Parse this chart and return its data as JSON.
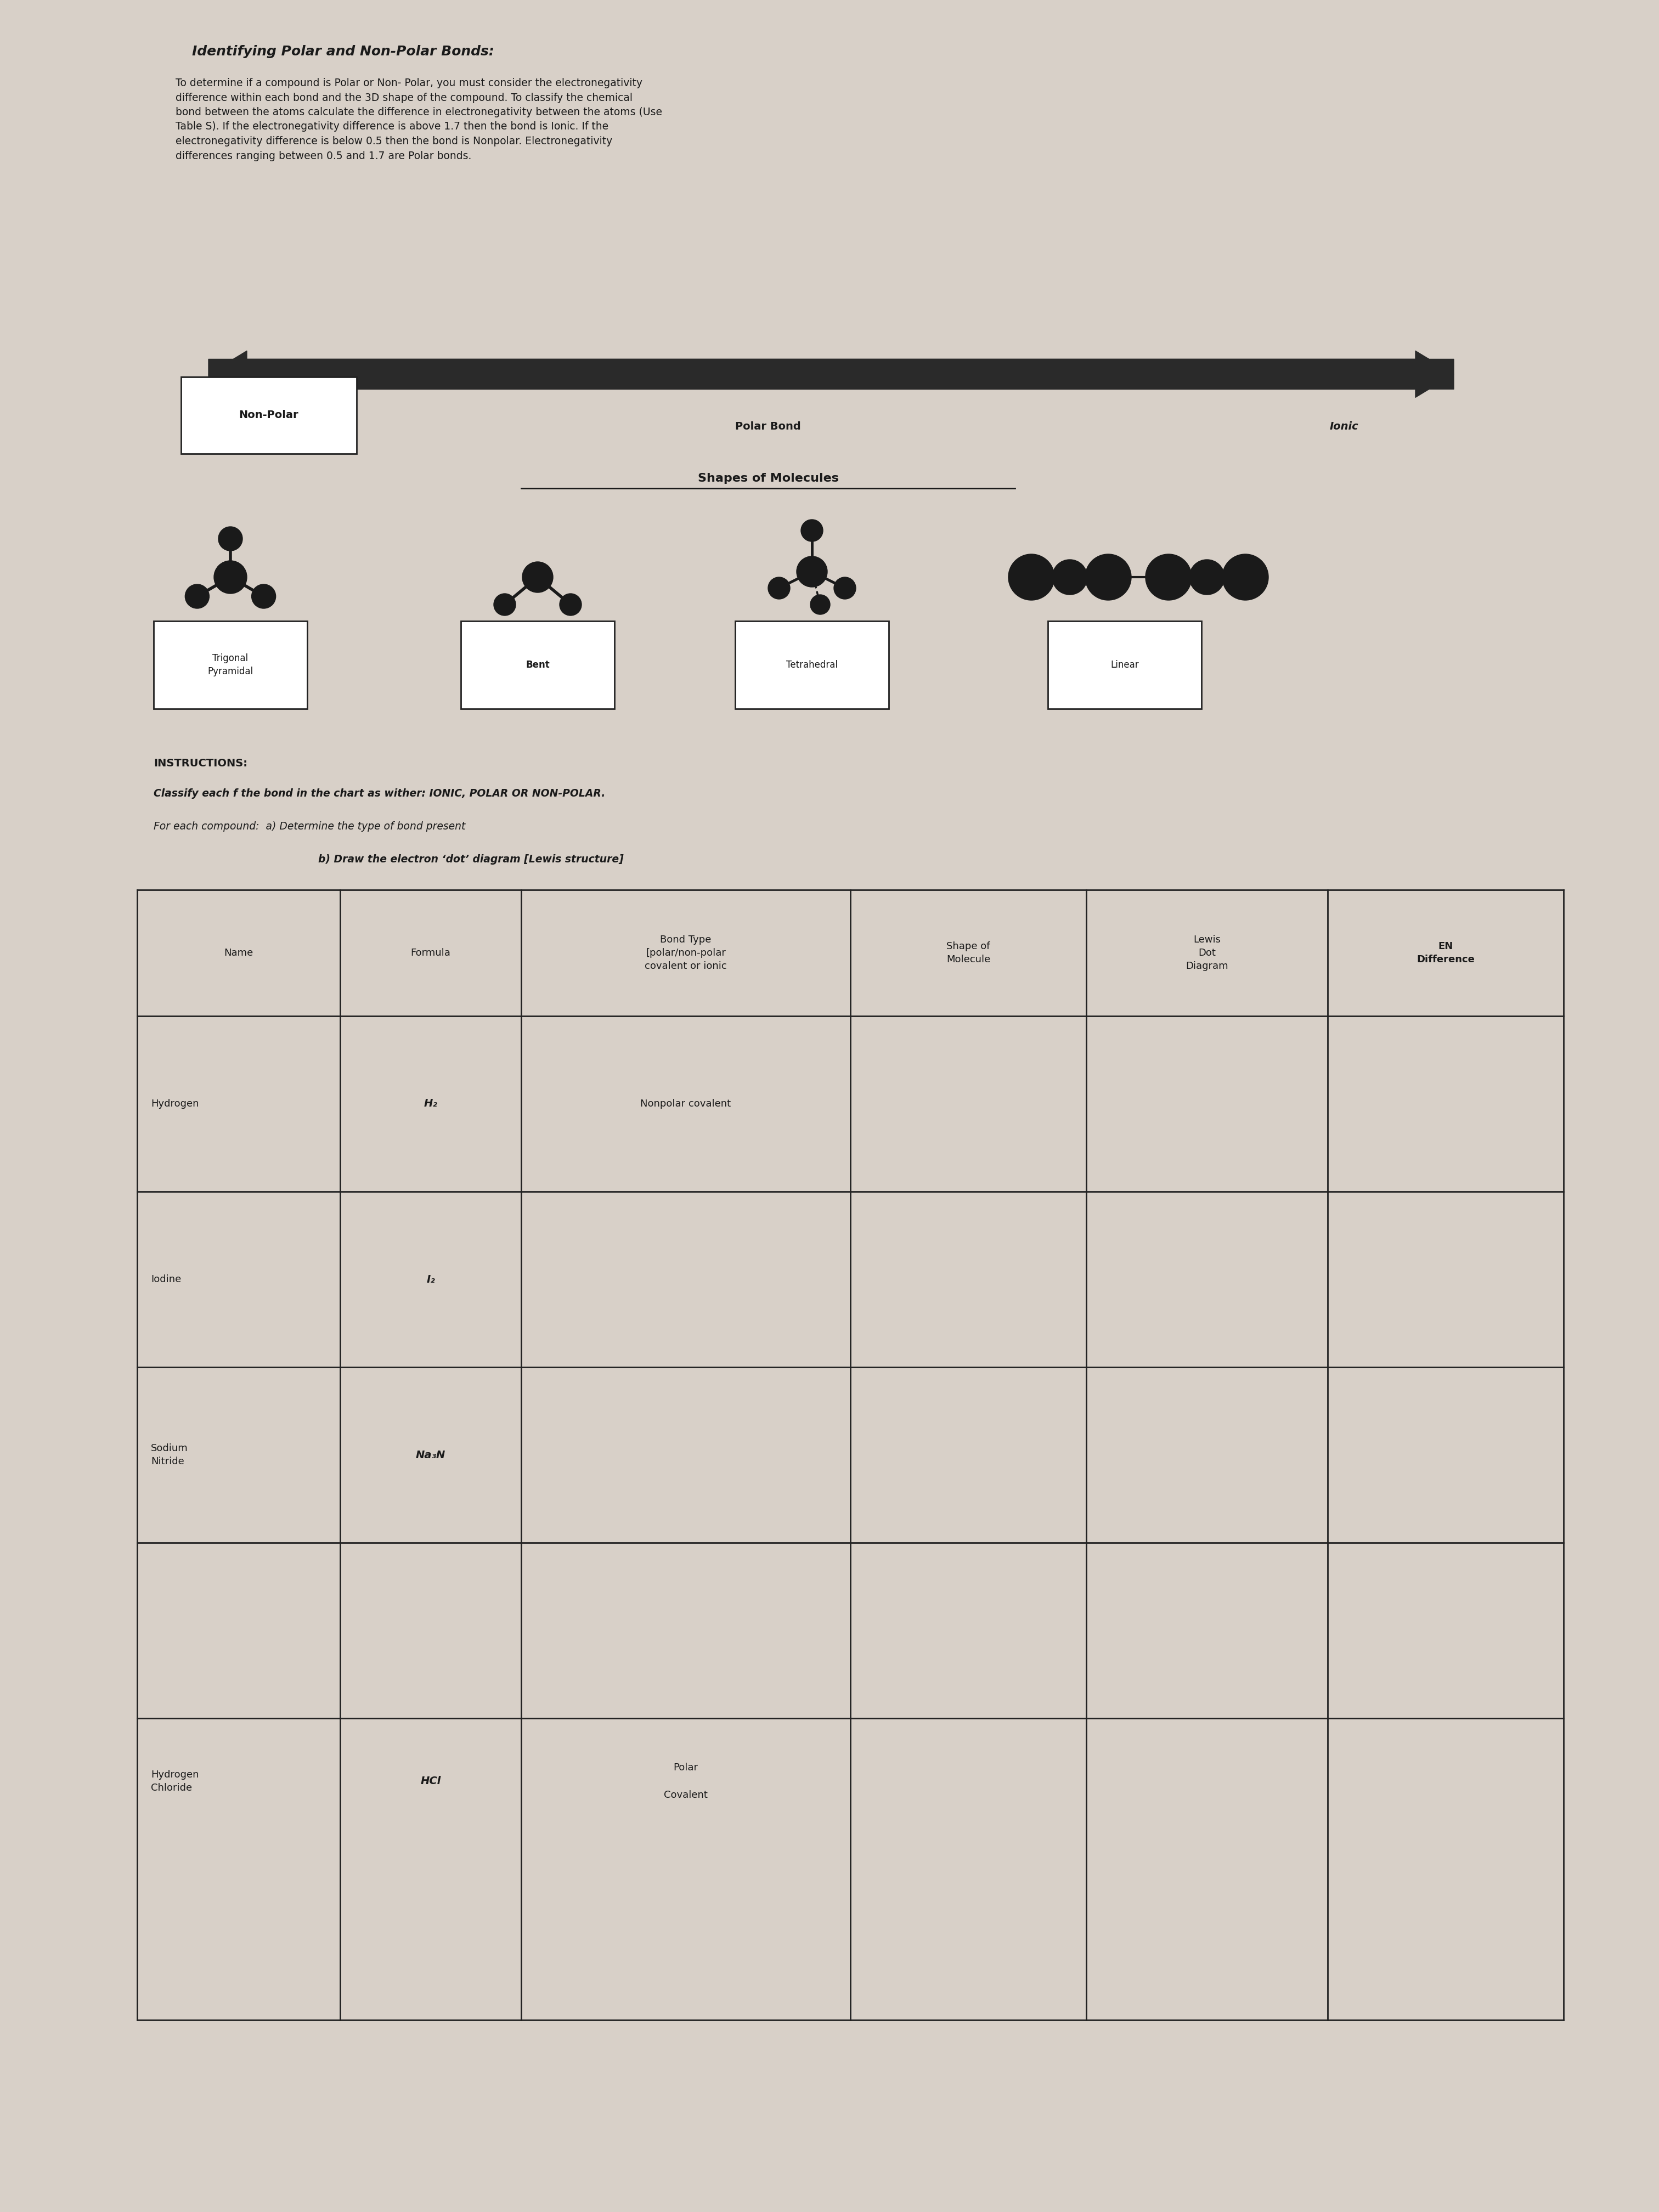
{
  "bg_color": "#d8d0c8",
  "title": "Identifying Polar and Non-Polar Bonds:",
  "intro_text": "To determine if a compound is Polar or Non- Polar, you must consider the electronegativity\ndifference within each bond and the 3D shape of the compound. To classify the chemical\nbond between the atoms calculate the difference in electronegativity between the atoms (Use\nTable S). If the electronegativity difference is above 1.7 then the bond is Ionic. If the\nelectronegativity difference is below 0.5 then the bond is Nonpolar. Electronegativity\ndifferences ranging between 0.5 and 1.7 are Polar bonds.",
  "arrow_label_left": "Non-Polar",
  "arrow_label_center": "Polar Bond",
  "arrow_label_right": "Ionic",
  "shapes_title": "Shapes of Molecules",
  "shape_labels": [
    "Trigonal\nPyramidal",
    "Bent",
    "Tetrahedral",
    "Linear"
  ],
  "instructions_header": "INSTRUCTIONS:",
  "instructions_line1": "Classify each f the bond in the chart as wither: IONIC, POLAR OR NON-POLAR.",
  "instructions_line2": "For each compound:  a) Determine the type of bond present",
  "instructions_line3": "b) Draw the electron ‘dot’ diagram [Lewis structure]",
  "table_headers": [
    "Name",
    "Formula",
    "Bond Type\n[polar/non-polar\ncovalent or ionic",
    "Shape of\nMolecule",
    "Lewis\nDot\nDiagram",
    "EN\nDifference"
  ],
  "table_rows": [
    [
      "Hydrogen",
      "H₂",
      "Nonpolar covalent",
      "",
      "",
      ""
    ],
    [
      "Iodine",
      "I₂",
      "",
      "",
      "",
      ""
    ],
    [
      "Sodium\nNitride",
      "Na₃N",
      "",
      "",
      "",
      ""
    ],
    [
      "Hydrogen\nChloride",
      "HCl",
      "Polar\n\nCovalent",
      "",
      "",
      ""
    ]
  ],
  "text_color": "#1a1a1a",
  "table_line_color": "#222222",
  "white_box_color": "#ffffff"
}
